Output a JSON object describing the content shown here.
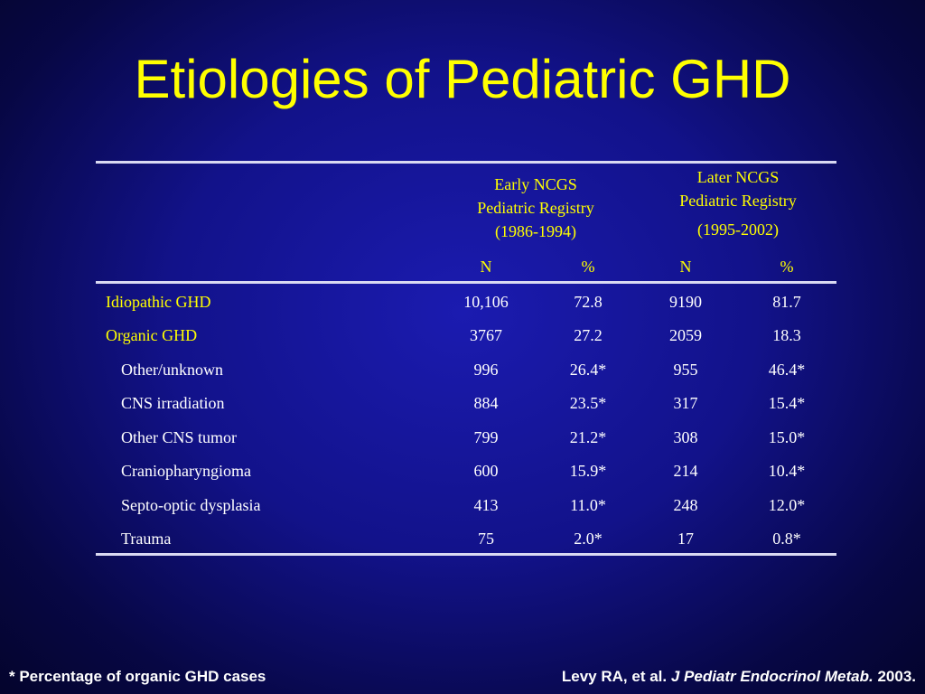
{
  "slide": {
    "title": "Etiologies of Pediatric GHD"
  },
  "table": {
    "groups": [
      {
        "line1": "Early NCGS",
        "line2": "Pediatric Registry",
        "line3": "(1986-1994)"
      },
      {
        "line1": "Later NCGS",
        "line2": "Pediatric Registry",
        "line3": "(1995-2002)"
      }
    ],
    "subheaders": [
      "N",
      "%",
      "N",
      "%"
    ],
    "rows": [
      {
        "label": "Idiopathic GHD",
        "values": [
          "10,106",
          "72.8",
          "9190",
          "81.7"
        ]
      },
      {
        "label": "Organic GHD",
        "values": [
          "3767",
          "27.2",
          "2059",
          "18.3"
        ]
      },
      {
        "label": "Other/unknown",
        "values": [
          "996",
          "26.4*",
          "955",
          "46.4*"
        ]
      },
      {
        "label": "CNS irradiation",
        "values": [
          "884",
          "23.5*",
          "317",
          "15.4*"
        ]
      },
      {
        "label": "Other CNS tumor",
        "values": [
          "799",
          "21.2*",
          "308",
          "15.0*"
        ]
      },
      {
        "label": "Craniopharyngioma",
        "values": [
          "600",
          "15.9*",
          "214",
          "10.4*"
        ]
      },
      {
        "label": "Septo-optic dysplasia",
        "values": [
          "413",
          "11.0*",
          "248",
          "12.0*"
        ]
      },
      {
        "label": "Trauma",
        "values": [
          "75",
          "2.0*",
          "17",
          "0.8*"
        ]
      }
    ]
  },
  "footer": {
    "footnote": "* Percentage of organic GHD cases",
    "citation_authors": "Levy RA, et al.",
    "citation_journal": "J Pediatr Endocrinol Metab.",
    "citation_year": "2003."
  },
  "colors": {
    "accent": "#ffff00",
    "text": "#ffffff",
    "background": "#12128a"
  }
}
